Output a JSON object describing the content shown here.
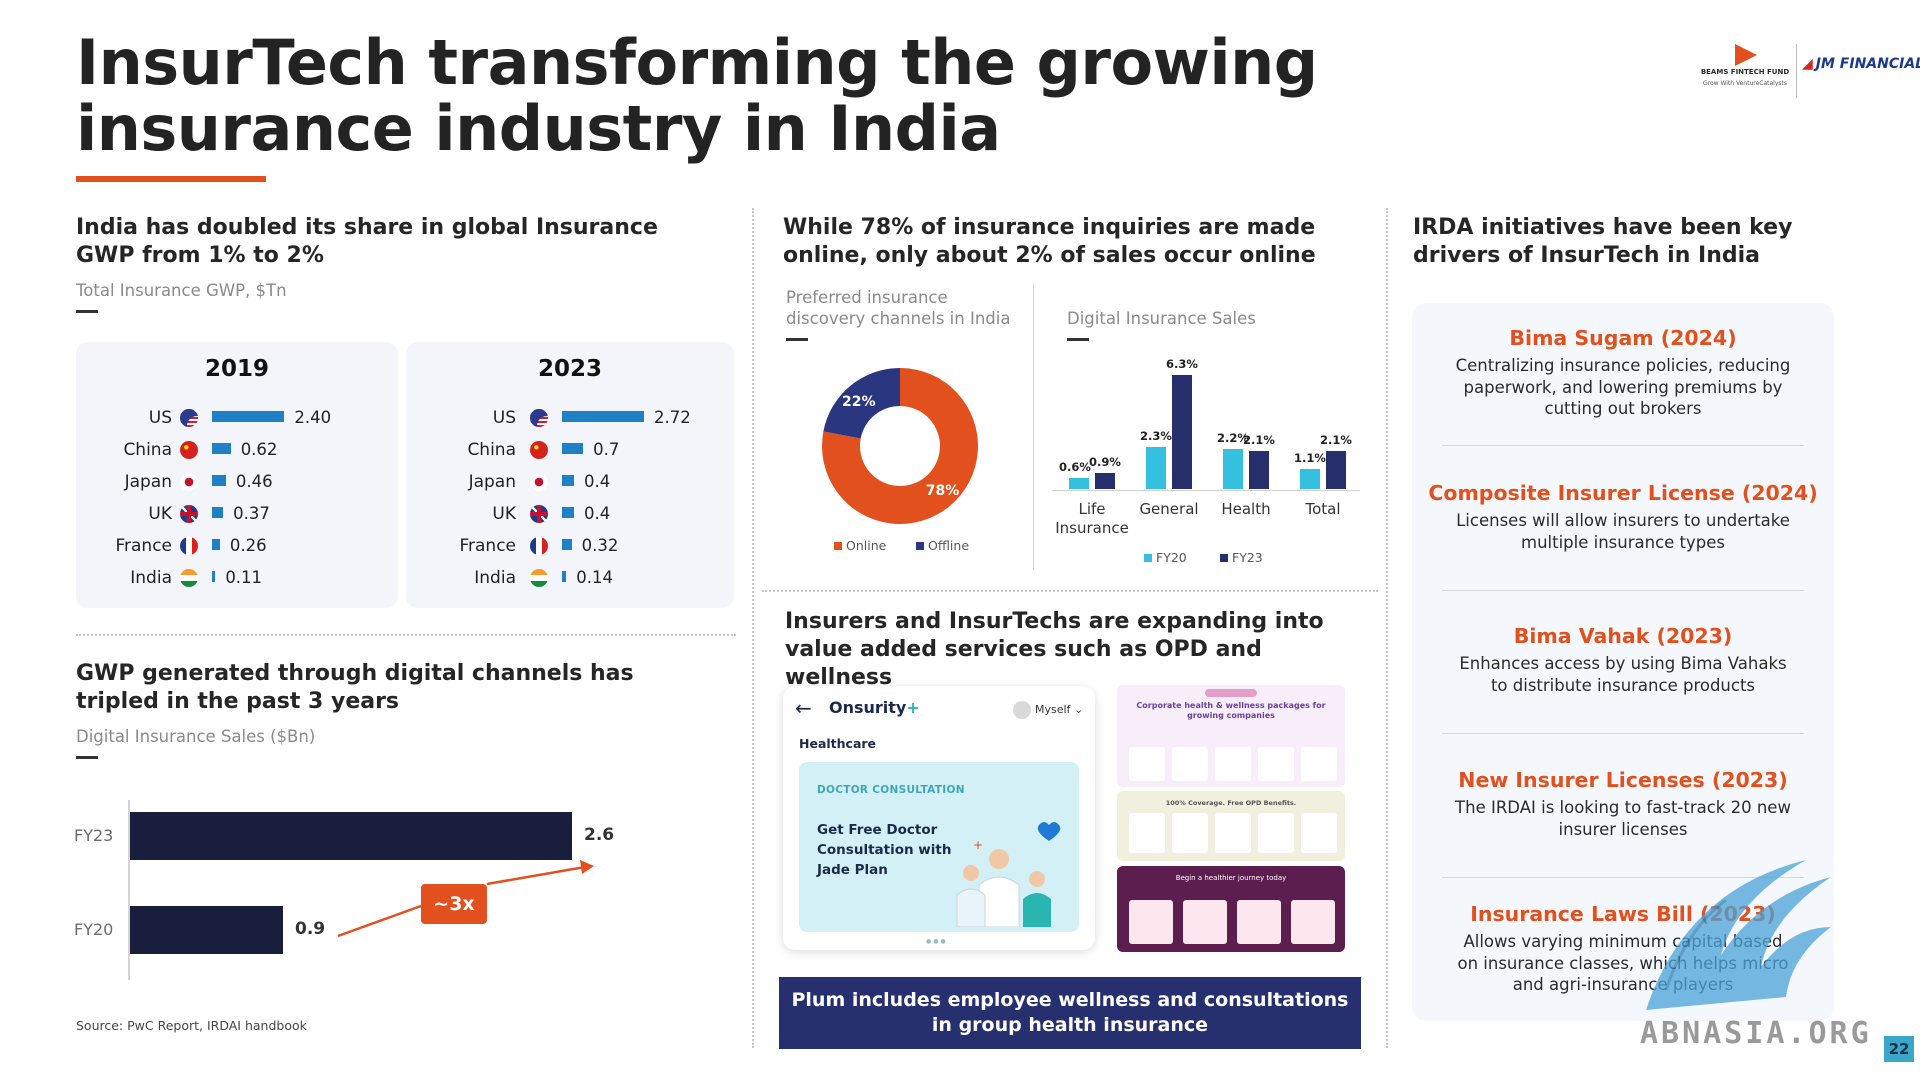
{
  "title": "InsurTech transforming the growing insurance industry in India",
  "logos": {
    "beams_name": "BEAMS FINTECH FUND",
    "beams_tagline": "Grow With VentureCatalysts",
    "jm_name": "JM FINANCIAL"
  },
  "gwp_section": {
    "heading": "India has doubled its share in global Insurance GWP from 1% to 2%",
    "subtitle": "Total Insurance GWP, $Tn",
    "panels": [
      {
        "year": "2019",
        "rows": [
          {
            "country": "US",
            "flag": "us-flag-icon",
            "value": 2.4,
            "label": "2.40"
          },
          {
            "country": "China",
            "flag": "china-flag-icon",
            "value": 0.62,
            "label": "0.62"
          },
          {
            "country": "Japan",
            "flag": "japan-flag-icon",
            "value": 0.46,
            "label": "0.46"
          },
          {
            "country": "UK",
            "flag": "uk-flag-icon",
            "value": 0.37,
            "label": "0.37"
          },
          {
            "country": "France",
            "flag": "france-flag-icon",
            "value": 0.26,
            "label": "0.26"
          },
          {
            "country": "India",
            "flag": "india-flag-icon",
            "value": 0.11,
            "label": "0.11"
          }
        ]
      },
      {
        "year": "2023",
        "rows": [
          {
            "country": "US",
            "flag": "us-flag-icon",
            "value": 2.72,
            "label": "2.72"
          },
          {
            "country": "China",
            "flag": "china-flag-icon",
            "value": 0.7,
            "label": "0.7"
          },
          {
            "country": "Japan",
            "flag": "japan-flag-icon",
            "value": 0.4,
            "label": "0.4"
          },
          {
            "country": "UK",
            "flag": "uk-flag-icon",
            "value": 0.4,
            "label": "0.4"
          },
          {
            "country": "France",
            "flag": "france-flag-icon",
            "value": 0.32,
            "label": "0.32"
          },
          {
            "country": "India",
            "flag": "india-flag-icon",
            "value": 0.14,
            "label": "0.14"
          }
        ]
      }
    ]
  },
  "digital_section": {
    "heading": "GWP generated through digital channels has tripled in the past 3 years",
    "subtitle": "Digital Insurance Sales ($Bn)",
    "growth_label": "~3x",
    "source": "Source: PwC Report, IRDAI handbook"
  },
  "online_section": {
    "heading": "While 78% of insurance inquiries are made online, only about 2% of sales occur online",
    "donut_subtitle": "Preferred insurance discovery channels in India",
    "sales_subtitle": "Digital Insurance Sales"
  },
  "value_added_section": {
    "heading": "Insurers and InsurTechs are expanding into value added services such as OPD and wellness",
    "app": {
      "brand": "Onsurity",
      "brand_plus": "+",
      "user": "Myself",
      "section": "Healthcare",
      "tag": "DOCTOR CONSULTATION",
      "cta": "Get Free Doctor Consultation with Jade Plan"
    },
    "screens": {
      "panel1_title": "Corporate health & wellness packages for growing companies",
      "panel2_title": "100% Coverage. Free OPD Benefits.",
      "panel3_title": "Begin a healthier journey today"
    },
    "banner": "Plum includes employee wellness and consultations in group health insurance"
  },
  "irda_section": {
    "heading": "IRDA initiatives have been key drivers of InsurTech in India",
    "initiatives": [
      {
        "title": "Bima Sugam (2024)",
        "desc": "Centralizing insurance policies, reducing paperwork, and lowering premiums by cutting out brokers"
      },
      {
        "title": "Composite Insurer License (2024)",
        "desc": "Licenses will allow insurers to undertake multiple insurance types"
      },
      {
        "title": "Bima Vahak (2023)",
        "desc": "Enhances access by using Bima Vahaks to distribute insurance products"
      },
      {
        "title": "New Insurer Licenses (2023)",
        "desc": "The IRDAI is looking to fast-track 20 new insurer licenses"
      },
      {
        "title": "Insurance Laws Bill (2023)",
        "desc": "Allows varying minimum capital based on insurance classes, which helps micro and agri-insurance players"
      }
    ]
  },
  "watermark": "ABNASIA.ORG",
  "page_number": "22",
  "colors": {
    "accent": "#e2501d",
    "bar_blue": "#1e81c6",
    "navy": "#191e3c",
    "fy20": "#34c0de",
    "fy23": "#262f6c",
    "offline": "#2a3680",
    "banner": "#27306e"
  },
  "chart_data": [
    {
      "type": "bar",
      "title": "Total Insurance GWP, $Tn",
      "categories": [
        "US",
        "China",
        "Japan",
        "UK",
        "France",
        "India"
      ],
      "series": [
        {
          "name": "2019",
          "values": [
            2.4,
            0.62,
            0.46,
            0.37,
            0.26,
            0.11
          ]
        },
        {
          "name": "2023",
          "values": [
            2.72,
            0.7,
            0.4,
            0.4,
            0.32,
            0.14
          ]
        }
      ]
    },
    {
      "type": "bar",
      "title": "Digital Insurance Sales ($Bn)",
      "categories": [
        "FY23",
        "FY20"
      ],
      "values": [
        2.6,
        0.9
      ],
      "labels": [
        "2.6",
        "0.9"
      ],
      "xlim": [
        0,
        2.6
      ]
    },
    {
      "type": "pie",
      "title": "Preferred insurance discovery channels in India",
      "labels": [
        "Online",
        "Offline"
      ],
      "values": [
        78,
        22
      ],
      "value_labels": [
        "78%",
        "22%"
      ],
      "colors": [
        "#e2501d",
        "#2a3680"
      ]
    },
    {
      "type": "bar",
      "title": "Digital Insurance Sales",
      "categories": [
        "Life Insurance",
        "General",
        "Health",
        "Total"
      ],
      "series": [
        {
          "name": "FY20",
          "values": [
            0.6,
            2.3,
            2.2,
            1.1
          ],
          "labels": [
            "0.6%",
            "2.3%",
            "2.2%",
            "1.1%"
          ]
        },
        {
          "name": "FY23",
          "values": [
            0.9,
            6.3,
            2.1,
            2.1
          ],
          "labels": [
            "0.9%",
            "6.3%",
            "2.1%",
            "2.1%"
          ]
        }
      ],
      "ylim": [
        0,
        6.3
      ]
    }
  ]
}
